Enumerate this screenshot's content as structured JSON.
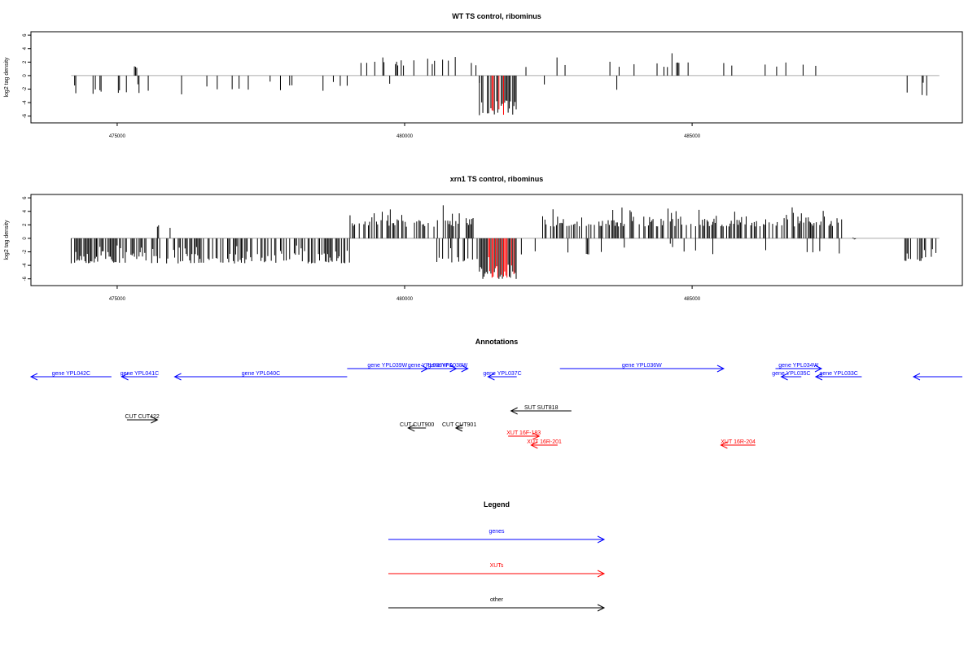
{
  "colors": {
    "gene": "#0000ff",
    "xut": "#ff0000",
    "other": "#000000",
    "frame": "#000000",
    "highlight": "#ff0000"
  },
  "chart_data": [
    {
      "type": "bar",
      "title": "WT TS control, ribominus",
      "ylabel": "log2 tag density",
      "xlabel": "",
      "ylim": [
        -7,
        6.5
      ],
      "xlim": [
        473500,
        489700
      ],
      "yticks": [
        6,
        4,
        2,
        0,
        -2,
        -4,
        -6
      ],
      "xticks": [
        475000,
        480000,
        485000
      ],
      "xtick_labels": [
        "475000",
        "480000",
        "485000"
      ],
      "grid": false,
      "segments": [
        {
          "range": [
            474200,
            476300
          ],
          "density": 0.09,
          "min": -3.5,
          "max": -0.6,
          "seed": 11
        },
        {
          "range": [
            475300,
            475350
          ],
          "density": 1.0,
          "min": 1.0,
          "max": 1.6,
          "seed": 3
        },
        {
          "range": [
            476300,
            479000
          ],
          "density": 0.09,
          "min": -2.8,
          "max": -0.6,
          "seed": 17
        },
        {
          "range": [
            479000,
            481300
          ],
          "density": 0.09,
          "min": 0.8,
          "max": 3.5,
          "seed": 23
        },
        {
          "range": [
            479000,
            481300
          ],
          "density": 0.02,
          "min": -1.5,
          "max": -0.4,
          "seed": 29
        },
        {
          "range": [
            481300,
            481950
          ],
          "density": 0.8,
          "min": -7,
          "max": -2.5,
          "seed": 31
        },
        {
          "range": [
            482050,
            487200
          ],
          "density": 0.07,
          "min": 0.4,
          "max": 3.8,
          "seed": 37
        },
        {
          "range": [
            482050,
            487200
          ],
          "density": 0.015,
          "min": -2.8,
          "max": -0.5,
          "seed": 41
        },
        {
          "range": [
            487400,
            487800
          ],
          "density": 0.02,
          "min": -2.2,
          "max": -0.6,
          "seed": 43
        },
        {
          "range": [
            488700,
            489250
          ],
          "density": 0.12,
          "min": -4.0,
          "max": -0.8,
          "seed": 47
        }
      ],
      "highlight_range": [
        481400,
        481900
      ]
    },
    {
      "type": "bar",
      "title": "xrn1 TS control, ribominus",
      "ylabel": "log2 tag density",
      "xlabel": "",
      "ylim": [
        -7,
        6.5
      ],
      "xlim": [
        473500,
        489700
      ],
      "yticks": [
        6,
        4,
        2,
        0,
        -2,
        -4,
        -6
      ],
      "xticks": [
        475000,
        480000,
        485000
      ],
      "xtick_labels": [
        "475000",
        "480000",
        "485000"
      ],
      "grid": false,
      "segments": [
        {
          "range": [
            474200,
            479050
          ],
          "density": 0.6,
          "min": -4.8,
          "max": -0.5,
          "seed": 53
        },
        {
          "range": [
            475400,
            476500
          ],
          "density": 0.02,
          "min": 1.0,
          "max": 3.0,
          "seed": 59
        },
        {
          "range": [
            479050,
            481200
          ],
          "density": 0.55,
          "min": 0.5,
          "max": 5.3,
          "seed": 61
        },
        {
          "range": [
            480500,
            481300
          ],
          "density": 0.15,
          "min": -4.5,
          "max": -0.8,
          "seed": 67
        },
        {
          "range": [
            481300,
            481950
          ],
          "density": 1.0,
          "min": -7.2,
          "max": -2.5,
          "seed": 71
        },
        {
          "range": [
            481950,
            482400
          ],
          "density": 0.2,
          "min": -3.5,
          "max": -0.5,
          "seed": 73
        },
        {
          "range": [
            482400,
            487600
          ],
          "density": 0.55,
          "min": 0.5,
          "max": 5.5,
          "seed": 79
        },
        {
          "range": [
            482400,
            487600
          ],
          "density": 0.06,
          "min": -3.0,
          "max": -0.5,
          "seed": 83
        },
        {
          "range": [
            487800,
            487850
          ],
          "density": 1.0,
          "min": -1.0,
          "max": 1.5,
          "seed": 89
        },
        {
          "range": [
            488700,
            489250
          ],
          "density": 0.3,
          "min": -4.2,
          "max": -0.8,
          "seed": 97
        }
      ],
      "highlight_range": [
        481400,
        481900
      ]
    }
  ],
  "annotations": {
    "title": "Annotations",
    "features": [
      {
        "label": "gene YPL042C",
        "kind": "gene",
        "start": 473500,
        "end": 474900,
        "strand": "-",
        "row": 1
      },
      {
        "label": "gene YPL041C",
        "kind": "gene",
        "start": 475080,
        "end": 475700,
        "strand": "-",
        "row": 1
      },
      {
        "label": "gene YPL040C",
        "kind": "gene",
        "start": 476000,
        "end": 479000,
        "strand": "-",
        "row": 1
      },
      {
        "label": "gene YPL039W",
        "kind": "gene",
        "start": 479000,
        "end": 480400,
        "strand": "+",
        "row": 0
      },
      {
        "label": "gene YPL038W-A",
        "kind": "gene",
        "start": 480000,
        "end": 480900,
        "strand": "+",
        "row": 0
      },
      {
        "label": "gene YPL038W",
        "kind": "gene",
        "start": 480400,
        "end": 481100,
        "strand": "+",
        "row": 0
      },
      {
        "label": "gene YPL037C",
        "kind": "gene",
        "start": 481450,
        "end": 481950,
        "strand": "-",
        "row": 1
      },
      {
        "label": "gene YPL036W",
        "kind": "gene",
        "start": 482700,
        "end": 485550,
        "strand": "+",
        "row": 0
      },
      {
        "label": "gene YPL034W",
        "kind": "gene",
        "start": 486450,
        "end": 487250,
        "strand": "+",
        "row": 0
      },
      {
        "label": "gene YPL035C",
        "kind": "gene",
        "start": 486550,
        "end": 486900,
        "strand": "-",
        "row": 1
      },
      {
        "label": "gene YPL033C",
        "kind": "gene",
        "start": 487150,
        "end": 487950,
        "strand": "-",
        "row": 1
      },
      {
        "label": "",
        "kind": "gene",
        "start": 488850,
        "end": 489700,
        "strand": "-",
        "row": 1
      },
      {
        "label": "CUT CUT422",
        "kind": "other",
        "start": 475170,
        "end": 475700,
        "strand": "+",
        "row": 3
      },
      {
        "label": "SUT SUT818",
        "kind": "other",
        "start": 481850,
        "end": 482900,
        "strand": "-",
        "row": 2
      },
      {
        "label": "CUT CUT900",
        "kind": "other",
        "start": 480060,
        "end": 480370,
        "strand": "-",
        "row": 4
      },
      {
        "label": "CUT CUT901",
        "kind": "other",
        "start": 480890,
        "end": 481010,
        "strand": "-",
        "row": 4
      },
      {
        "label": "XUT 16F-183",
        "kind": "xut",
        "start": 481800,
        "end": 482340,
        "strand": "+",
        "row": 5
      },
      {
        "label": "XUT 16R-201",
        "kind": "xut",
        "start": 482200,
        "end": 482660,
        "strand": "-",
        "row": 6
      },
      {
        "label": "XUT 16R-204",
        "kind": "xut",
        "start": 485500,
        "end": 486100,
        "strand": "-",
        "row": 6
      }
    ]
  },
  "legend": {
    "title": "Legend",
    "items": [
      {
        "label": "genes",
        "kind": "gene"
      },
      {
        "label": "XUTs",
        "kind": "xut"
      },
      {
        "label": "other",
        "kind": "other"
      }
    ]
  }
}
